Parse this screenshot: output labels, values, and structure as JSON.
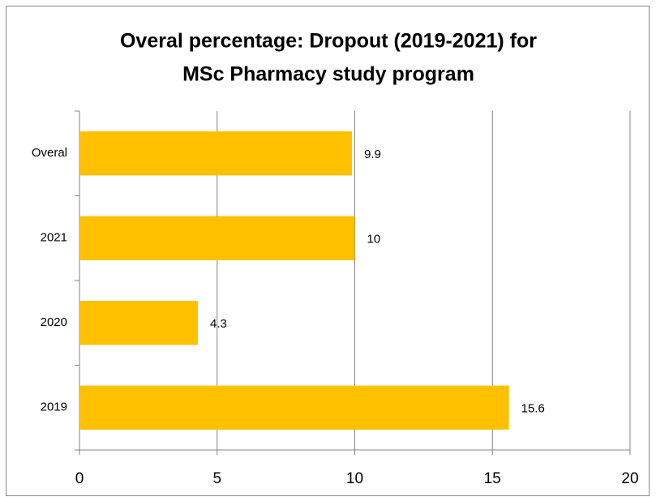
{
  "chart_data": {
    "type": "barh",
    "title": [
      "Overal percentage: Dropout (2019-2021) for",
      "MSc Pharmacy study program"
    ],
    "categories": [
      "2019",
      "2020",
      "2021",
      "Overal"
    ],
    "values": [
      15.6,
      4.3,
      10,
      9.9
    ],
    "color": "#ffc000",
    "xlim": [
      0,
      20
    ],
    "xticks": [
      0,
      5,
      10,
      15,
      20
    ],
    "grid": true
  }
}
